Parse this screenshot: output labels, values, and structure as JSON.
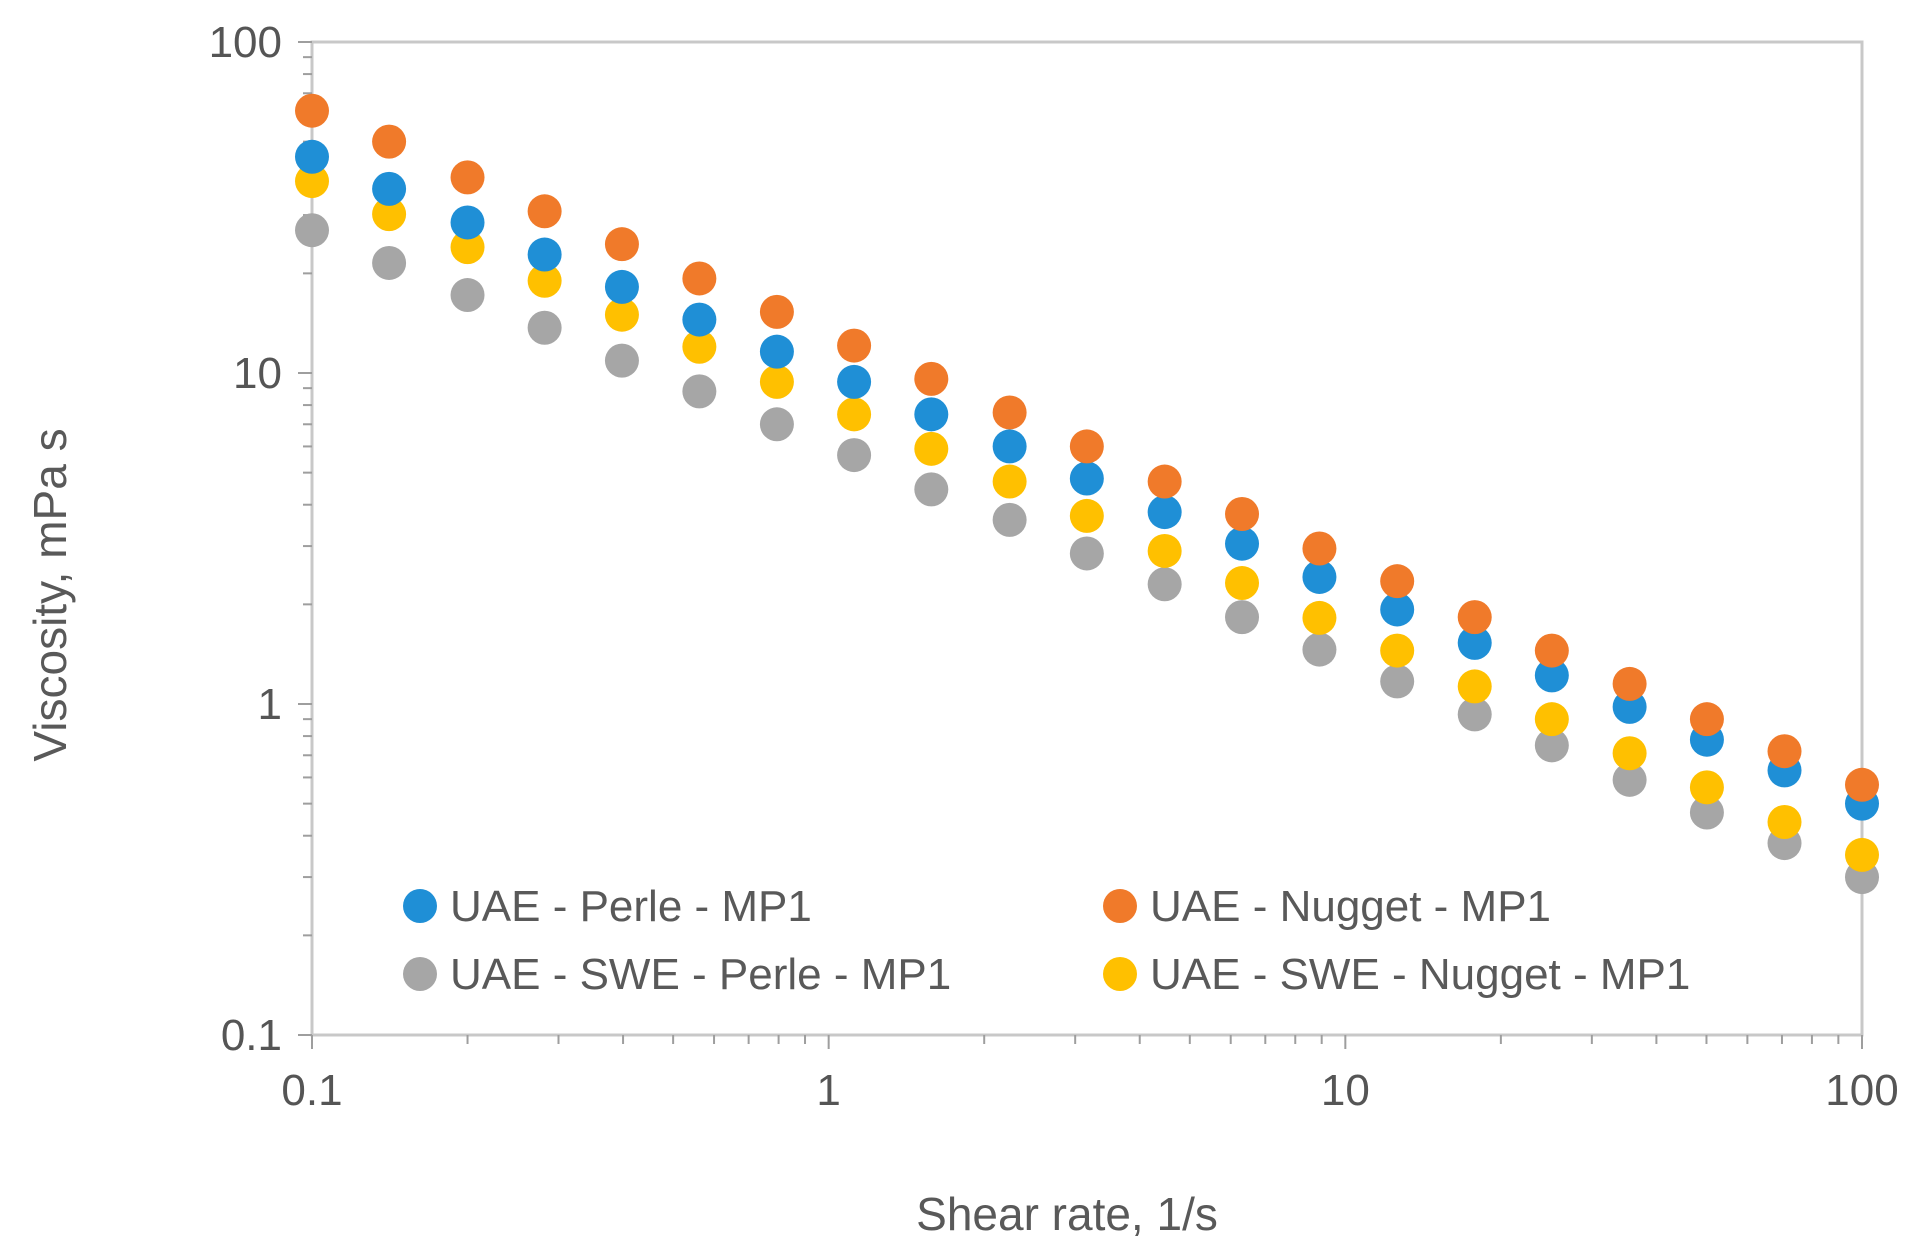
{
  "chart_data": {
    "type": "scatter",
    "title": "",
    "xlabel": "Shear rate, 1/s",
    "ylabel": "Viscosity, mPa s",
    "xscale": "log",
    "yscale": "log",
    "xlim": [
      0.1,
      100
    ],
    "ylim": [
      0.1,
      100
    ],
    "xticks": [
      "0.1",
      "1",
      "10",
      "100"
    ],
    "yticks": [
      "0.1",
      "1",
      "10",
      "100"
    ],
    "grid": false,
    "legend_position": "bottom-inside",
    "x": [
      0.1,
      0.141,
      0.2,
      0.282,
      0.398,
      0.562,
      0.794,
      1.12,
      1.58,
      2.24,
      3.16,
      4.47,
      6.31,
      8.91,
      12.6,
      17.8,
      25.1,
      35.5,
      50.1,
      70.8,
      100
    ],
    "series": [
      {
        "name": "UAE - Perle - MP1",
        "color": "#1f8fd6",
        "values": [
          45,
          36,
          28.5,
          22.8,
          18.2,
          14.5,
          11.6,
          9.4,
          7.5,
          6.0,
          4.8,
          3.8,
          3.05,
          2.42,
          1.93,
          1.53,
          1.22,
          0.98,
          0.78,
          0.63,
          0.5
        ]
      },
      {
        "name": "UAE - Nugget - MP1",
        "color": "#f07a2a",
        "values": [
          62,
          50,
          39,
          30.8,
          24.5,
          19.3,
          15.3,
          12.1,
          9.6,
          7.6,
          6.0,
          4.7,
          3.75,
          2.95,
          2.35,
          1.83,
          1.45,
          1.15,
          0.9,
          0.72,
          0.57
        ]
      },
      {
        "name": "UAE - SWE - Perle - MP1",
        "color": "#a6a6a6",
        "values": [
          27,
          21.5,
          17.2,
          13.7,
          10.9,
          8.8,
          7.0,
          5.65,
          4.45,
          3.6,
          2.85,
          2.3,
          1.83,
          1.46,
          1.17,
          0.93,
          0.75,
          0.59,
          0.47,
          0.38,
          0.3
        ]
      },
      {
        "name": "UAE - SWE - Nugget - MP1",
        "color": "#ffc000",
        "values": [
          38,
          30.2,
          24.0,
          19.0,
          15.0,
          12.0,
          9.4,
          7.5,
          5.9,
          4.7,
          3.7,
          2.9,
          2.32,
          1.82,
          1.45,
          1.13,
          0.9,
          0.71,
          0.56,
          0.44,
          0.35
        ]
      }
    ]
  }
}
